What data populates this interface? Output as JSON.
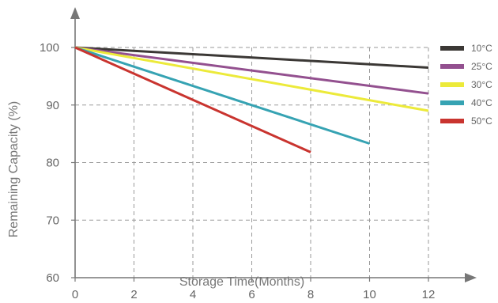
{
  "chart_data": {
    "type": "line",
    "title": "",
    "xlabel": "Storage Time(Months)",
    "ylabel": "Remaining Capacity (%)",
    "x_ticks": [
      0,
      2,
      4,
      6,
      8,
      10,
      12
    ],
    "y_ticks": [
      60,
      70,
      80,
      90,
      100
    ],
    "xlim": [
      0,
      12
    ],
    "ylim": [
      60,
      100
    ],
    "grid": true,
    "legend_position": "right",
    "series": [
      {
        "name": "10°C",
        "color": "#3b3835",
        "x": [
          0,
          12
        ],
        "y": [
          100,
          96.5
        ]
      },
      {
        "name": "25°C",
        "color": "#93508f",
        "x": [
          0,
          12
        ],
        "y": [
          100,
          92.0
        ]
      },
      {
        "name": "30°C",
        "color": "#ecea3a",
        "x": [
          0,
          12
        ],
        "y": [
          100,
          89.0
        ]
      },
      {
        "name": "40°C",
        "color": "#36a3b3",
        "x": [
          0,
          10
        ],
        "y": [
          100,
          83.3
        ]
      },
      {
        "name": "50°C",
        "color": "#c9342f",
        "x": [
          0,
          8
        ],
        "y": [
          100,
          81.8
        ]
      }
    ]
  }
}
